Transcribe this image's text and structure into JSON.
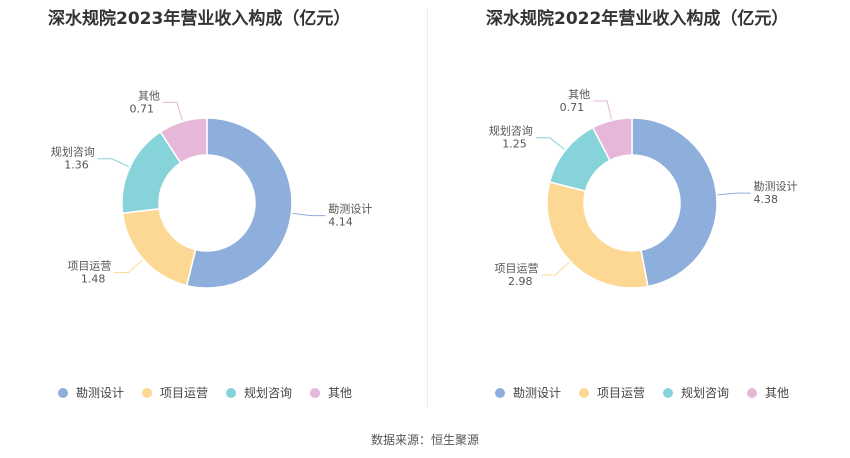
{
  "source": "数据来源：恒生聚源",
  "colors": [
    "#8eaedb",
    "#fdd894",
    "#86d4d9",
    "#e6b7d9"
  ],
  "chart_data": [
    {
      "type": "pie",
      "title": "深水规院2023年营业收入构成（亿元）",
      "categories": [
        "勘测设计",
        "项目运营",
        "规划咨询",
        "其他"
      ],
      "values": [
        4.14,
        1.48,
        1.36,
        0.71
      ],
      "value_labels": [
        "4.14",
        "1.48",
        "1.36",
        "0.71"
      ],
      "legend_position": "bottom"
    },
    {
      "type": "pie",
      "title": "深水规院2022年营业收入构成（亿元）",
      "categories": [
        "勘测设计",
        "项目运营",
        "规划咨询",
        "其他"
      ],
      "values": [
        4.38,
        2.98,
        1.25,
        0.71
      ],
      "value_labels": [
        "4.38",
        "2.98",
        "1.25",
        "0.71"
      ],
      "legend_position": "bottom"
    }
  ]
}
